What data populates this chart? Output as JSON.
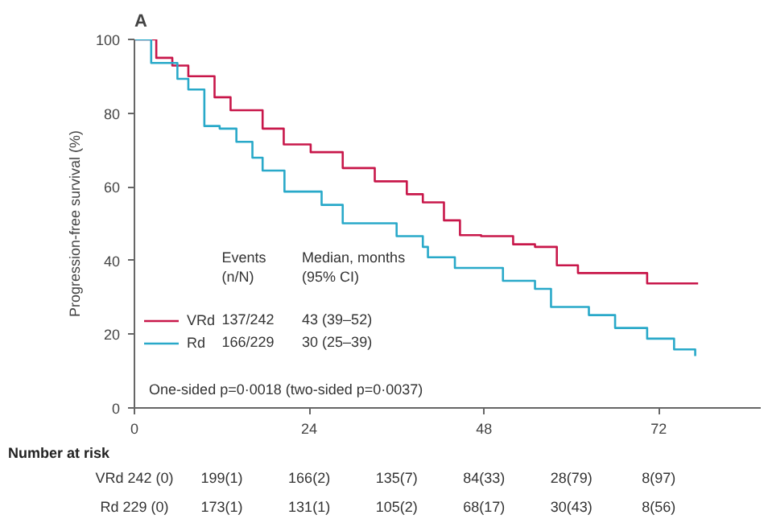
{
  "chart_data": {
    "type": "step",
    "title": "A",
    "ylabel": "Progression-free survival (%)",
    "xlim": [
      0,
      86
    ],
    "ylim": [
      0,
      100
    ],
    "xticks": [
      0,
      24,
      48,
      72
    ],
    "yticks": [
      0,
      20,
      40,
      60,
      80,
      100
    ],
    "grid": false,
    "legend": "bottom left",
    "line_style": "solid",
    "marker": "none",
    "series": [
      {
        "name": "VRd",
        "color": "#c8174a",
        "x": [
          0,
          3.0,
          5.2,
          7.4,
          11.0,
          13.2,
          17.6,
          20.5,
          24.2,
          28.6,
          33.0,
          37.4,
          39.6,
          42.5,
          44.7,
          47.6,
          52.0,
          55.0,
          58.0,
          60.9,
          69.7,
          70.4,
          77.4
        ],
        "values": [
          100,
          95.0,
          92.9,
          90.0,
          84.3,
          80.8,
          75.8,
          71.5,
          69.4,
          65.1,
          61.5,
          58.0,
          55.8,
          50.9,
          46.9,
          46.6,
          44.4,
          43.7,
          38.7,
          36.6,
          36.6,
          33.8,
          33.8
        ]
      },
      {
        "name": "Rd",
        "color": "#29a9c9",
        "x": [
          0,
          2.3,
          5.9,
          7.4,
          9.6,
          11.7,
          14.0,
          16.2,
          17.6,
          20.6,
          25.7,
          28.6,
          36.0,
          39.6,
          40.3,
          44.0,
          50.6,
          55.0,
          57.2,
          62.4,
          66.0,
          70.4,
          74.1,
          77.0
        ],
        "values": [
          100,
          93.6,
          89.3,
          86.4,
          76.5,
          75.8,
          72.2,
          67.9,
          64.4,
          58.7,
          55.1,
          50.1,
          46.6,
          43.7,
          40.9,
          38.0,
          34.5,
          32.3,
          27.4,
          25.2,
          21.7,
          18.8,
          15.9,
          14.1
        ]
      }
    ],
    "annotations": [
      "Events\n(n/N)",
      "Median, months\n(95% CI)",
      "137/242",
      "43 (39–52)",
      "166/229",
      "30 (25–39)",
      "One-sided p=0·0018 (two-sided p=0·0037)",
      "Number at risk",
      "VRd 242 (0)",
      "199(1)",
      "166(2)",
      "135(7)",
      "84(33)",
      "28(79)",
      "8(97)",
      "Rd 229 (0)",
      "173(1)",
      "131(1)",
      "105(2)",
      "68(17)",
      "30(43)",
      "8(56)"
    ]
  }
}
